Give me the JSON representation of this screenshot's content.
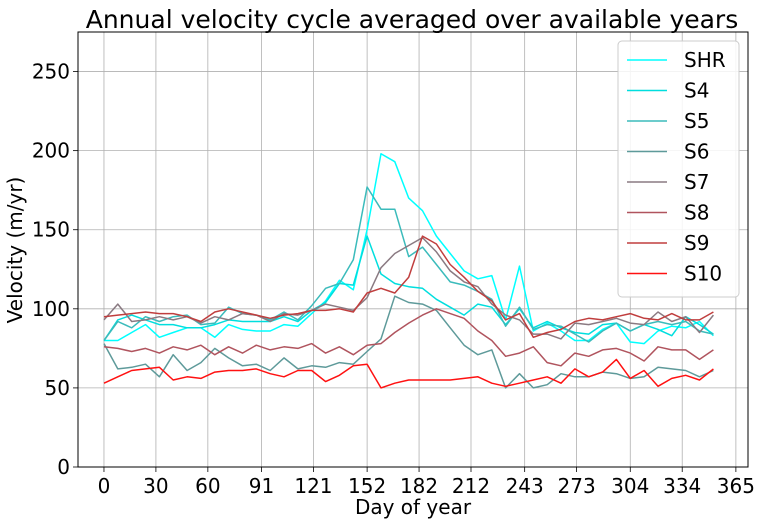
{
  "chart_data": {
    "type": "line",
    "title": "Annual velocity cycle averaged over available years",
    "xlabel": "Day of year",
    "ylabel": "Velocity (m/yr)",
    "xlim": [
      -15,
      372
    ],
    "ylim": [
      0,
      275
    ],
    "xticks": [
      0,
      30,
      60,
      91,
      121,
      152,
      182,
      212,
      243,
      273,
      304,
      334,
      365
    ],
    "yticks": [
      0,
      50,
      100,
      150,
      200,
      250
    ],
    "grid": true,
    "legend_position": "top-right",
    "x": [
      0,
      8,
      16,
      24,
      32,
      40,
      48,
      56,
      64,
      72,
      80,
      88,
      96,
      104,
      112,
      120,
      128,
      136,
      144,
      152,
      160,
      168,
      176,
      184,
      192,
      200,
      208,
      216,
      224,
      232,
      240,
      248,
      256,
      264,
      272,
      280,
      288,
      296,
      304,
      312,
      320,
      328,
      336,
      344,
      352
    ],
    "series": [
      {
        "name": "SHR",
        "color": "#00ffff",
        "values": [
          80,
          80,
          85,
          90,
          82,
          85,
          88,
          88,
          82,
          90,
          87,
          86,
          86,
          90,
          89,
          97,
          105,
          118,
          112,
          150,
          198,
          193,
          170,
          162,
          146,
          135,
          124,
          119,
          121,
          93,
          127,
          86,
          91,
          86,
          80,
          80,
          87,
          91,
          79,
          78,
          86,
          89,
          88,
          92,
          83
        ]
      },
      {
        "name": "S4",
        "color": "#00dede",
        "values": [
          80,
          93,
          96,
          93,
          90,
          90,
          88,
          88,
          90,
          93,
          92,
          92,
          92,
          95,
          92,
          99,
          104,
          116,
          115,
          146,
          122,
          116,
          114,
          113,
          106,
          101,
          96,
          103,
          101,
          90,
          100,
          88,
          92,
          88,
          85,
          84,
          90,
          91,
          86,
          90,
          87,
          83,
          95,
          90,
          84
        ]
      },
      {
        "name": "S5",
        "color": "#3bbbbb",
        "values": [
          80,
          92,
          88,
          95,
          92,
          95,
          96,
          90,
          91,
          101,
          97,
          96,
          93,
          98,
          93,
          102,
          113,
          116,
          131,
          177,
          163,
          163,
          133,
          139,
          128,
          117,
          115,
          111,
          106,
          89,
          101,
          87,
          90,
          89,
          84,
          79,
          86,
          91,
          86,
          90,
          92,
          90,
          92,
          86,
          84
        ]
      },
      {
        "name": "S6",
        "color": "#5e9a9a",
        "values": [
          78,
          62,
          63,
          65,
          57,
          71,
          61,
          66,
          75,
          69,
          64,
          65,
          61,
          69,
          62,
          64,
          63,
          66,
          65,
          73,
          81,
          108,
          104,
          103,
          99,
          88,
          77,
          71,
          74,
          50,
          59,
          50,
          52,
          59,
          57,
          57,
          60,
          59,
          56,
          57,
          63,
          62,
          61,
          57,
          61
        ]
      },
      {
        "name": "S7",
        "color": "#8a7a82",
        "values": [
          93,
          103,
          92,
          93,
          95,
          93,
          95,
          91,
          95,
          93,
          97,
          96,
          92,
          97,
          96,
          99,
          103,
          101,
          99,
          107,
          126,
          135,
          140,
          145,
          136,
          124,
          117,
          114,
          103,
          96,
          93,
          84,
          84,
          81,
          91,
          90,
          92,
          94,
          91,
          90,
          98,
          92,
          95,
          85,
          96
        ]
      },
      {
        "name": "S8",
        "color": "#b0545e",
        "values": [
          76,
          75,
          73,
          75,
          72,
          76,
          74,
          77,
          71,
          76,
          72,
          77,
          74,
          76,
          75,
          78,
          72,
          76,
          71,
          77,
          78,
          85,
          91,
          96,
          100,
          97,
          94,
          86,
          80,
          70,
          72,
          76,
          66,
          64,
          72,
          70,
          74,
          75,
          72,
          67,
          76,
          74,
          74,
          68,
          74
        ]
      },
      {
        "name": "S9",
        "color": "#c03e3e",
        "values": [
          95,
          96,
          97,
          98,
          97,
          97,
          95,
          92,
          98,
          100,
          98,
          96,
          94,
          96,
          97,
          99,
          99,
          100,
          98,
          110,
          113,
          110,
          120,
          146,
          141,
          128,
          120,
          111,
          105,
          93,
          97,
          82,
          85,
          87,
          92,
          94,
          93,
          95,
          97,
          94,
          93,
          97,
          93,
          93,
          98
        ]
      },
      {
        "name": "S10",
        "color": "#ff1111",
        "values": [
          53,
          57,
          61,
          62,
          63,
          55,
          57,
          56,
          60,
          61,
          61,
          62,
          59,
          57,
          61,
          61,
          54,
          58,
          64,
          65,
          50,
          53,
          55,
          55,
          55,
          55,
          56,
          57,
          53,
          51,
          53,
          55,
          57,
          53,
          62,
          57,
          60,
          68,
          56,
          61,
          51,
          56,
          58,
          55,
          62
        ]
      }
    ]
  }
}
